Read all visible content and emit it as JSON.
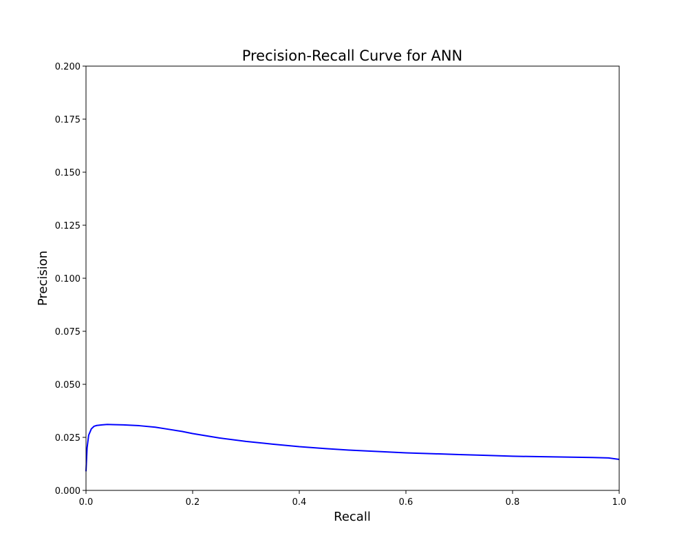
{
  "chart_data": {
    "type": "line",
    "title": "Precision-Recall Curve for ANN",
    "xlabel": "Recall",
    "ylabel": "Precision",
    "xlim": [
      0.0,
      1.0
    ],
    "ylim": [
      0.0,
      0.2
    ],
    "xticks": [
      "0.0",
      "0.2",
      "0.4",
      "0.6",
      "0.8",
      "1.0"
    ],
    "yticks": [
      "0.000",
      "0.025",
      "0.050",
      "0.075",
      "0.100",
      "0.125",
      "0.150",
      "0.175",
      "0.200"
    ],
    "grid": false,
    "legend": false,
    "series": [
      {
        "color": "#0000ff",
        "x": [
          0.0,
          0.002,
          0.005,
          0.01,
          0.015,
          0.02,
          0.03,
          0.04,
          0.05,
          0.07,
          0.1,
          0.13,
          0.15,
          0.18,
          0.2,
          0.25,
          0.3,
          0.35,
          0.4,
          0.45,
          0.5,
          0.55,
          0.6,
          0.65,
          0.7,
          0.75,
          0.8,
          0.85,
          0.9,
          0.95,
          0.98,
          1.0
        ],
        "y": [
          0.009,
          0.02,
          0.026,
          0.029,
          0.0302,
          0.0306,
          0.0309,
          0.0311,
          0.031,
          0.0309,
          0.0305,
          0.0298,
          0.029,
          0.0278,
          0.0268,
          0.0247,
          0.0231,
          0.0218,
          0.0206,
          0.0197,
          0.0189,
          0.0183,
          0.0177,
          0.0173,
          0.0169,
          0.0165,
          0.0161,
          0.0159,
          0.0157,
          0.0155,
          0.0153,
          0.0146
        ]
      }
    ]
  }
}
